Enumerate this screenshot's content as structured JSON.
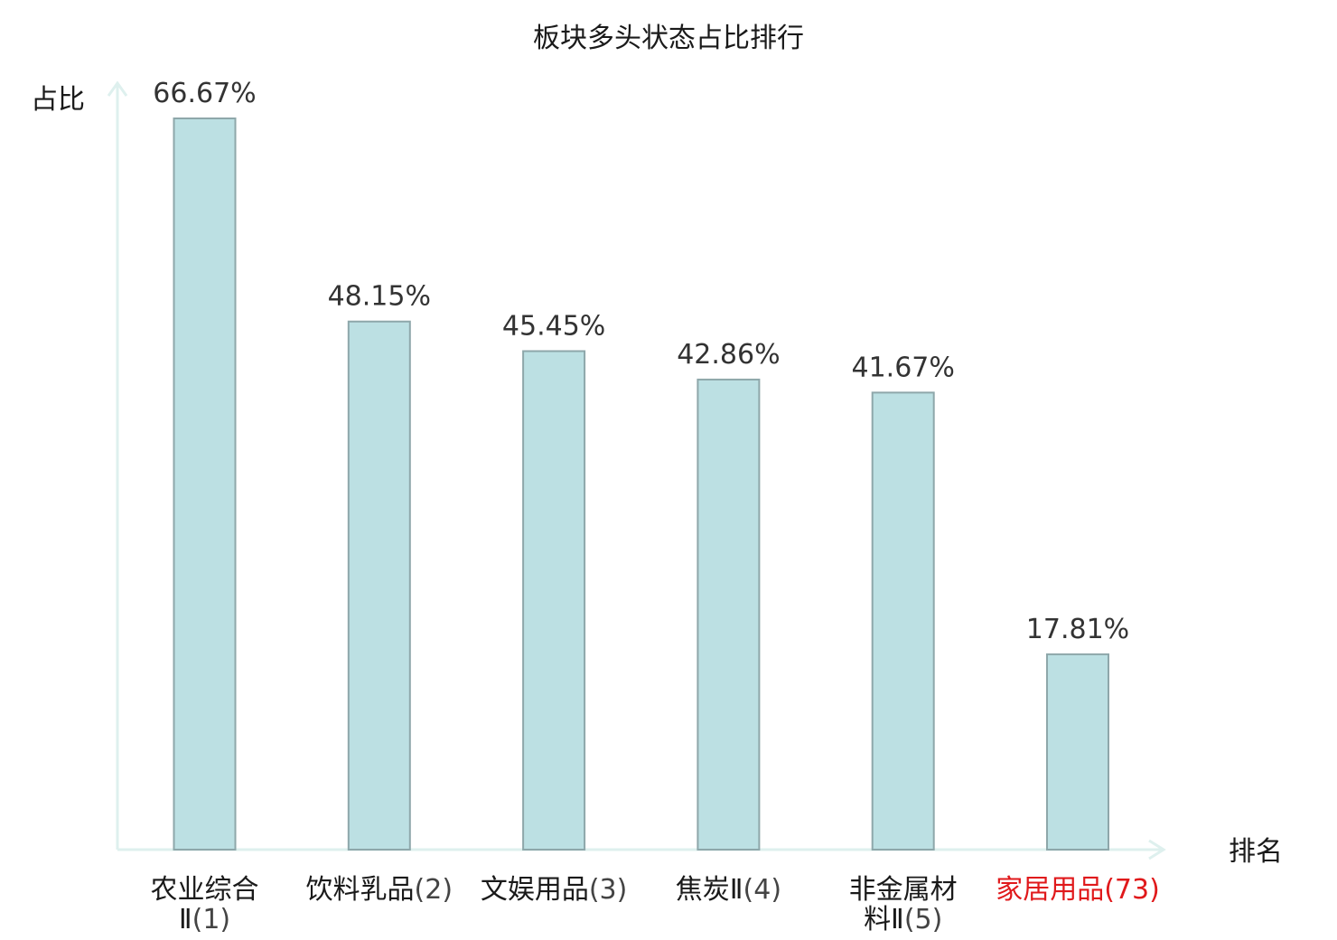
{
  "chart_data": {
    "type": "bar",
    "title": "板块多头状态占比排行",
    "ylabel": "占比",
    "xlabel": "排名",
    "ylim": [
      0,
      70
    ],
    "grid": false,
    "categories": [
      {
        "name_lines": [
          "农业综合",
          "Ⅱ"
        ],
        "rank": "(1)",
        "highlight": false
      },
      {
        "name_lines": [
          "饮料乳品"
        ],
        "rank": "(2)",
        "highlight": false
      },
      {
        "name_lines": [
          "文娱用品"
        ],
        "rank": "(3)",
        "highlight": false
      },
      {
        "name_lines": [
          "焦炭Ⅱ"
        ],
        "rank": "(4)",
        "highlight": false
      },
      {
        "name_lines": [
          "非金属材",
          "料Ⅱ"
        ],
        "rank": "(5)",
        "highlight": false
      },
      {
        "name_lines": [
          "家居用品"
        ],
        "rank": "(73)",
        "highlight": true
      }
    ],
    "values": [
      66.67,
      48.15,
      45.45,
      42.86,
      41.67,
      17.81
    ],
    "value_labels": [
      "66.67%",
      "48.15%",
      "45.45%",
      "42.86%",
      "41.67%",
      "17.81%"
    ]
  },
  "colors": {
    "bar_fill": "#bce0e3",
    "bar_stroke": "#8ea7aa",
    "axis": "#def0ee",
    "highlight_text": "#e0191b"
  }
}
